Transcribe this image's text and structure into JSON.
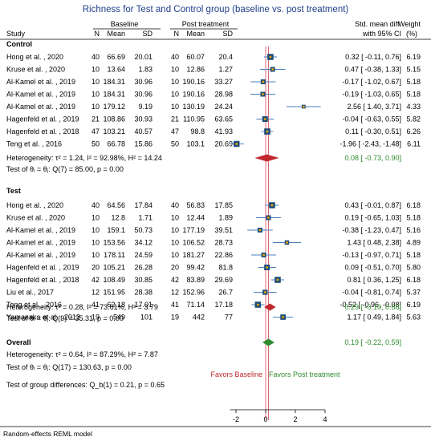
{
  "title": "Richness for Test and Control group (baseline vs. post treatment)",
  "columns": {
    "study": "Study",
    "baseline": "Baseline",
    "post": "Post treatment",
    "smd_line1": "Std. mean diff.",
    "smd_line2": "with 95% CI",
    "weight_line1": "Weight",
    "weight_line2": "(%)",
    "n": "N",
    "mean": "Mean",
    "sd": "SD"
  },
  "colors": {
    "title": "#1f3f8a",
    "square": "#1f4e79",
    "square_dot": "#f2a900",
    "ci_line": "#4a7fc1",
    "pooled_diamond": "#c0282d",
    "overall_diamond": "#2e8b2e",
    "pooled_text": "#2e8b2e",
    "favors_left": "#c0282d",
    "favors_right": "#2e8b2e",
    "ref_line": "#e05a70",
    "ref_line_pooled": "#d05a60"
  },
  "groups": [
    {
      "name": "Control",
      "heterogeneity": "Heterogeneity: τ² = 1.24, I² = 92.98%, H² = 14.24",
      "test": "Test of θᵢ = θⱼ: Q(7) = 85.00, p = 0.00",
      "pooled": {
        "est": 0.08,
        "lo": -0.73,
        "hi": 0.9,
        "text": "0.08 [ -0.73, 0.90]"
      },
      "studies": [
        {
          "study": "Hong et al. , 2020",
          "n1": "40",
          "m1": "66.69",
          "sd1": "20.01",
          "n2": "40",
          "m2": "60.07",
          "sd2": "20.4",
          "est": 0.32,
          "lo": -0.11,
          "hi": 0.76,
          "ci": "0.32 [ -0.11, 0.76]",
          "w": "6.19"
        },
        {
          "study": "Kruse et al. , 2020",
          "n1": "10",
          "m1": "13.64",
          "sd1": "1.83",
          "n2": "10",
          "m2": "12.86",
          "sd2": "1.27",
          "est": 0.47,
          "lo": -0.38,
          "hi": 1.33,
          "ci": "0.47 [ -0.38, 1.33]",
          "w": "5.15"
        },
        {
          "study": "Al-Kamel et al. , 2019",
          "n1": "10",
          "m1": "184.31",
          "sd1": "30.96",
          "n2": "10",
          "m2": "190.16",
          "sd2": "33.27",
          "est": -0.17,
          "lo": -1.02,
          "hi": 0.67,
          "ci": "-0.17 [ -1.02, 0.67]",
          "w": "5.18"
        },
        {
          "study": "Al-Kamel et al. , 2019",
          "n1": "10",
          "m1": "184.31",
          "sd1": "30.96",
          "n2": "10",
          "m2": "190.16",
          "sd2": "28.98",
          "est": -0.19,
          "lo": -1.03,
          "hi": 0.65,
          "ci": "-0.19 [ -1.03, 0.65]",
          "w": "5.18"
        },
        {
          "study": "Al-Kamel et al. , 2019",
          "n1": "10",
          "m1": "179.12",
          "sd1": "9.19",
          "n2": "10",
          "m2": "130.19",
          "sd2": "24.24",
          "est": 2.56,
          "lo": 1.4,
          "hi": 3.71,
          "ci": "2.56 [ 1.40, 3.71]",
          "w": "4.33"
        },
        {
          "study": "Hagenfeld et al. , 2019",
          "n1": "21",
          "m1": "108.86",
          "sd1": "30.93",
          "n2": "21",
          "m2": "110.95",
          "sd2": "63.65",
          "est": -0.04,
          "lo": -0.63,
          "hi": 0.55,
          "ci": "-0.04 [ -0.63, 0.55]",
          "w": "5.82"
        },
        {
          "study": "Hagenfeld et al. , 2018",
          "n1": "47",
          "m1": "103.21",
          "sd1": "40.57",
          "n2": "47",
          "m2": "98.8",
          "sd2": "41.93",
          "est": 0.11,
          "lo": -0.3,
          "hi": 0.51,
          "ci": "0.11 [ -0.30, 0.51]",
          "w": "6.26"
        },
        {
          "study": "Teng et al. , 2016",
          "n1": "50",
          "m1": "66.78",
          "sd1": "15.86",
          "n2": "50",
          "m2": "103.1",
          "sd2": "20.69",
          "est": -1.96,
          "lo": -2.43,
          "hi": -1.48,
          "ci": "-1.96 [ -2.43, -1.48]",
          "w": "6.11"
        }
      ]
    },
    {
      "name": "Test",
      "heterogeneity": "Heterogeneity: τ² = 0.28, I² = 73.61%, H² = 3.79",
      "test": "Test of θᵢ = θⱼ: Q(9) = 35.31, p = 0.00",
      "pooled": {
        "est": 0.29,
        "lo": -0.1,
        "hi": 0.68,
        "text": "0.29 [ -0.10, 0.68]"
      },
      "studies": [
        {
          "study": "Hong et al. , 2020",
          "n1": "40",
          "m1": "64.56",
          "sd1": "17.84",
          "n2": "40",
          "m2": "56.83",
          "sd2": "17.85",
          "est": 0.43,
          "lo": -0.01,
          "hi": 0.87,
          "ci": "0.43 [ -0.01, 0.87]",
          "w": "6.18"
        },
        {
          "study": "Kruse et al. , 2020",
          "n1": "10",
          "m1": "12.8",
          "sd1": "1.71",
          "n2": "10",
          "m2": "12.44",
          "sd2": "1.89",
          "est": 0.19,
          "lo": -0.65,
          "hi": 1.03,
          "ci": "0.19 [ -0.65, 1.03]",
          "w": "5.18"
        },
        {
          "study": "Al-Kamel et al. , 2019",
          "n1": "10",
          "m1": "159.1",
          "sd1": "50.73",
          "n2": "10",
          "m2": "177.19",
          "sd2": "39.51",
          "est": -0.38,
          "lo": -1.23,
          "hi": 0.47,
          "ci": "-0.38 [ -1.23, 0.47]",
          "w": "5.16"
        },
        {
          "study": "Al-Kamel et al. , 2019",
          "n1": "10",
          "m1": "153.56",
          "sd1": "34.12",
          "n2": "10",
          "m2": "106.52",
          "sd2": "28.73",
          "est": 1.43,
          "lo": 0.48,
          "hi": 2.38,
          "ci": "1.43 [ 0.48, 2.38]",
          "w": "4.89"
        },
        {
          "study": "Al-Kamel et al. , 2019",
          "n1": "10",
          "m1": "178.11",
          "sd1": "24.59",
          "n2": "10",
          "m2": "181.27",
          "sd2": "22.86",
          "est": -0.13,
          "lo": -0.97,
          "hi": 0.71,
          "ci": "-0.13 [ -0.97, 0.71]",
          "w": "5.18"
        },
        {
          "study": "Hagenfeld et al. , 2019",
          "n1": "20",
          "m1": "105.21",
          "sd1": "26.28",
          "n2": "20",
          "m2": "99.42",
          "sd2": "81.8",
          "est": 0.09,
          "lo": -0.51,
          "hi": 0.7,
          "ci": "0.09 [ -0.51, 0.70]",
          "w": "5.80"
        },
        {
          "study": "Hagenfeld et al. , 2018",
          "n1": "42",
          "m1": "108.49",
          "sd1": "30.85",
          "n2": "42",
          "m2": "83.89",
          "sd2": "29.69",
          "est": 0.81,
          "lo": 0.36,
          "hi": 1.25,
          "ci": "0.81 [ 0.36, 1.25]",
          "w": "6.18"
        },
        {
          "study": "Liu et al., 2017",
          "n1": "12",
          "m1": "151.95",
          "sd1": "28.38",
          "n2": "12",
          "m2": "152.96",
          "sd2": "26.7",
          "est": -0.04,
          "lo": -0.81,
          "hi": 0.74,
          "ci": "-0.04 [ -0.81, 0.74]",
          "w": "5.37"
        },
        {
          "study": "Teng et al. , 2016",
          "n1": "41",
          "m1": "62.18",
          "sd1": "17.01",
          "n2": "41",
          "m2": "71.14",
          "sd2": "17.18",
          "est": -0.52,
          "lo": -0.96,
          "hi": -0.08,
          "ci": "-0.52 [ -0.96, -0.08]",
          "w": "6.19"
        },
        {
          "study": "Yamanaka et al. , 2012",
          "n1": "19",
          "m1": "549",
          "sd1": "101",
          "n2": "19",
          "m2": "442",
          "sd2": "77",
          "est": 1.17,
          "lo": 0.49,
          "hi": 1.84,
          "ci": "1.17 [ 0.49, 1.84]",
          "w": "5.63"
        }
      ]
    }
  ],
  "overall": {
    "label": "Overall",
    "est": 0.19,
    "lo": -0.22,
    "hi": 0.59,
    "text": "0.19 [ -0.22, 0.59]",
    "heterogeneity": "Heterogeneity: τ² = 0.64, I² = 87.29%, H² = 7.87",
    "test": "Test of θᵢ = θⱼ: Q(17) = 130.63, p = 0.00"
  },
  "group_difference": "Test of group differences: Q_b(1) = 0.21, p = 0.65",
  "favors_left": "Favors Baseline",
  "favors_right": "Favors Post treatment",
  "footer": "Random-effects REML model",
  "chart_data": {
    "type": "forest",
    "title": "Richness for Test and Control group (baseline vs. post treatment)",
    "xaxis": {
      "ticks": [
        -2,
        0,
        2,
        4
      ],
      "range": [
        -2.4,
        4.0
      ],
      "reference_lines": [
        0,
        0.19
      ]
    },
    "effect_measure": "Std. mean diff. with 95% CI",
    "model": "Random-effects REML model"
  }
}
